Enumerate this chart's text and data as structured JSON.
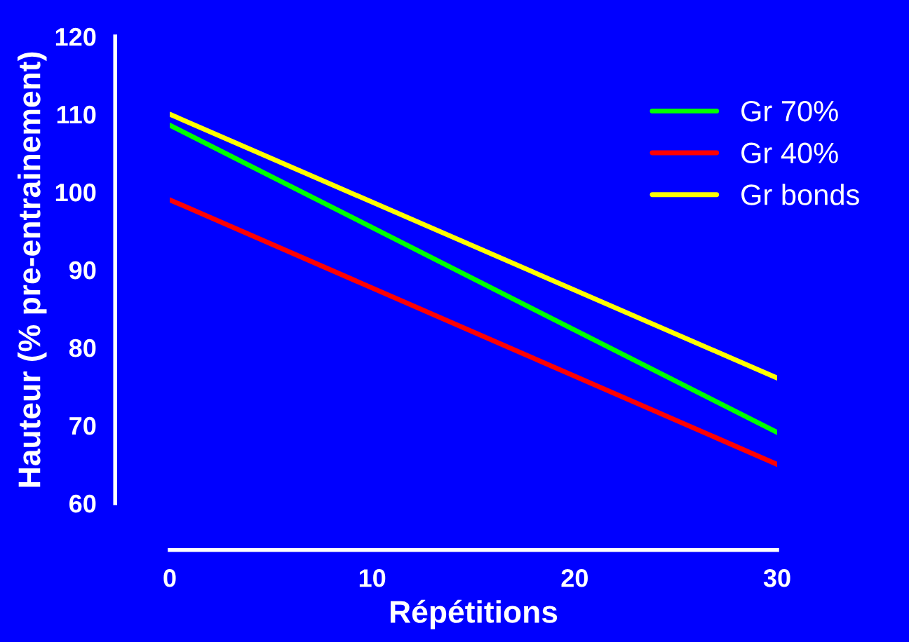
{
  "chart_data": {
    "type": "line",
    "xlabel": "Répétitions",
    "ylabel": "Hauteur (% pre-entrainement)",
    "x": [
      0,
      30
    ],
    "series": [
      {
        "name": "Gr 70%",
        "color": "#00ff00",
        "values": [
          108.6,
          69.1
        ]
      },
      {
        "name": "Gr 40%",
        "color": "#ff0000",
        "values": [
          99,
          65
        ]
      },
      {
        "name": "Gr bonds",
        "color": "#ffff00",
        "values": [
          110,
          76.1
        ]
      }
    ],
    "xlim": [
      0,
      30
    ],
    "xticks": [
      0,
      10,
      20,
      30
    ],
    "ylim": [
      60,
      120
    ],
    "yticks": [
      60,
      70,
      80,
      90,
      100,
      110,
      120
    ],
    "grid": false,
    "legend": "top right",
    "marker": "none",
    "line_style": "solid"
  }
}
